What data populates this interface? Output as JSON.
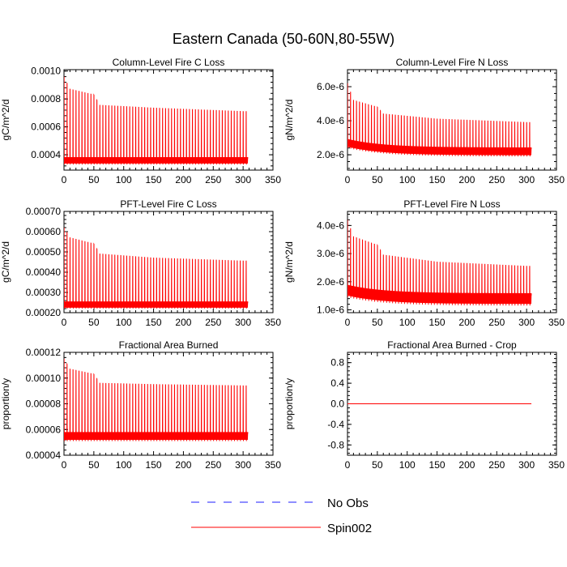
{
  "title": "Eastern Canada (50-60N,80-55W)",
  "legend": {
    "items": [
      {
        "label": "No Obs",
        "color": "#1c1cff",
        "style": "dashed"
      },
      {
        "label": "Spin002",
        "color": "#ff0000",
        "style": "solid"
      }
    ]
  },
  "chart_data": [
    {
      "type": "line",
      "title": "Column-Level Fire C Loss",
      "xlabel": "",
      "ylabel": "gC/m^2/d",
      "xlim": [
        0,
        350
      ],
      "ylim": [
        0.00029,
        0.00101
      ],
      "xticks": [
        0,
        50,
        100,
        150,
        200,
        250,
        300,
        350
      ],
      "yticks": [
        0.0004,
        0.0006,
        0.0008,
        0.001
      ],
      "yticklabels": [
        "0.0004",
        "0.0006",
        "0.0008",
        "0.0010"
      ],
      "series": [
        {
          "name": "Spin002",
          "color": "#ff0000",
          "x_end": 308,
          "cycle_years": 5,
          "base": 0.00036,
          "base_amp": 3e-05,
          "peaks": [
            [
              0,
              0.00096
            ],
            [
              10,
              0.00087
            ],
            [
              50,
              0.00083
            ],
            [
              60,
              0.000755
            ],
            [
              150,
              0.000735
            ],
            [
              300,
              0.00071
            ]
          ]
        }
      ]
    },
    {
      "type": "line",
      "title": "Column-Level Fire N Loss",
      "xlabel": "",
      "ylabel": "gN/m^2/d",
      "xlim": [
        0,
        350
      ],
      "ylim": [
        1.1e-06,
        7e-06
      ],
      "xticks": [
        0,
        50,
        100,
        150,
        200,
        250,
        300,
        350
      ],
      "yticks": [
        2e-06,
        4e-06,
        6e-06
      ],
      "yticklabels": [
        "2.0e-6",
        "4.0e-6",
        "6.0e-6"
      ],
      "series": [
        {
          "name": "Spin002",
          "color": "#ff0000",
          "x_end": 308,
          "cycle_years": 5,
          "base": 2.2e-06,
          "base_amp": 3e-07,
          "base_decay": 5e-07,
          "peaks": [
            [
              0,
              6.2e-06
            ],
            [
              10,
              5.2e-06
            ],
            [
              50,
              4.8e-06
            ],
            [
              60,
              4.4e-06
            ],
            [
              150,
              4.1e-06
            ],
            [
              300,
              3.9e-06
            ]
          ]
        }
      ]
    },
    {
      "type": "line",
      "title": "PFT-Level Fire C Loss",
      "xlabel": "",
      "ylabel": "gC/m^2/d",
      "xlim": [
        0,
        350
      ],
      "ylim": [
        0.0002,
        0.0007
      ],
      "xticks": [
        0,
        50,
        100,
        150,
        200,
        250,
        300,
        350
      ],
      "yticks": [
        0.0002,
        0.0003,
        0.0004,
        0.0005,
        0.0006,
        0.0007
      ],
      "yticklabels": [
        "0.00020",
        "0.00030",
        "0.00040",
        "0.00050",
        "0.00060",
        "0.00070"
      ],
      "series": [
        {
          "name": "Spin002",
          "color": "#ff0000",
          "x_end": 308,
          "cycle_years": 5,
          "base": 0.00024,
          "base_amp": 2e-05,
          "peaks": [
            [
              0,
              0.00062
            ],
            [
              10,
              0.00057
            ],
            [
              50,
              0.00054
            ],
            [
              60,
              0.00049
            ],
            [
              150,
              0.00047
            ],
            [
              300,
              0.000455
            ]
          ]
        }
      ]
    },
    {
      "type": "line",
      "title": "PFT-Level Fire N Loss",
      "xlabel": "",
      "ylabel": "gN/m^2/d",
      "xlim": [
        0,
        350
      ],
      "ylim": [
        9e-07,
        4.5e-06
      ],
      "xticks": [
        0,
        50,
        100,
        150,
        200,
        250,
        300,
        350
      ],
      "yticks": [
        1e-06,
        2e-06,
        3e-06,
        4e-06
      ],
      "yticklabels": [
        "1.0e-6",
        "2.0e-6",
        "3.0e-6",
        "4.0e-6"
      ],
      "series": [
        {
          "name": "Spin002",
          "color": "#ff0000",
          "x_end": 308,
          "cycle_years": 5,
          "base": 1.4e-06,
          "base_amp": 2.5e-07,
          "base_decay": 3e-07,
          "peaks": [
            [
              0,
              4.2e-06
            ],
            [
              10,
              3.6e-06
            ],
            [
              50,
              3.3e-06
            ],
            [
              60,
              2.95e-06
            ],
            [
              150,
              2.7e-06
            ],
            [
              300,
              2.55e-06
            ]
          ]
        }
      ]
    },
    {
      "type": "line",
      "title": "Fractional Area Burned",
      "xlabel": "",
      "ylabel": "proportion/y",
      "xlim": [
        0,
        350
      ],
      "ylim": [
        4e-05,
        0.00012
      ],
      "xticks": [
        0,
        50,
        100,
        150,
        200,
        250,
        300,
        350
      ],
      "yticks": [
        4e-05,
        6e-05,
        8e-05,
        0.0001,
        0.00012
      ],
      "yticklabels": [
        "0.00004",
        "0.00006",
        "0.00008",
        "0.00010",
        "0.00012"
      ],
      "series": [
        {
          "name": "Spin002",
          "color": "#ff0000",
          "x_end": 308,
          "cycle_years": 5,
          "base": 5.5e-05,
          "base_amp": 4e-06,
          "peaks": [
            [
              0,
              0.000115
            ],
            [
              10,
              0.000107
            ],
            [
              50,
              0.000103
            ],
            [
              60,
              9.6e-05
            ],
            [
              150,
              9.5e-05
            ],
            [
              300,
              9.4e-05
            ]
          ]
        }
      ]
    },
    {
      "type": "line",
      "title": "Fractional Area Burned - Crop",
      "xlabel": "",
      "ylabel": "proportion/y",
      "xlim": [
        0,
        350
      ],
      "ylim": [
        -1,
        1
      ],
      "xticks": [
        0,
        50,
        100,
        150,
        200,
        250,
        300,
        350
      ],
      "yticks": [
        -0.8,
        -0.4,
        0,
        0.4,
        0.8
      ],
      "yticklabels": [
        "-0.8",
        "-0.4",
        "0.0",
        "0.4",
        "0.8"
      ],
      "series": [
        {
          "name": "Spin002",
          "color": "#ff0000",
          "x_end": 308,
          "constant": 0
        }
      ]
    }
  ]
}
